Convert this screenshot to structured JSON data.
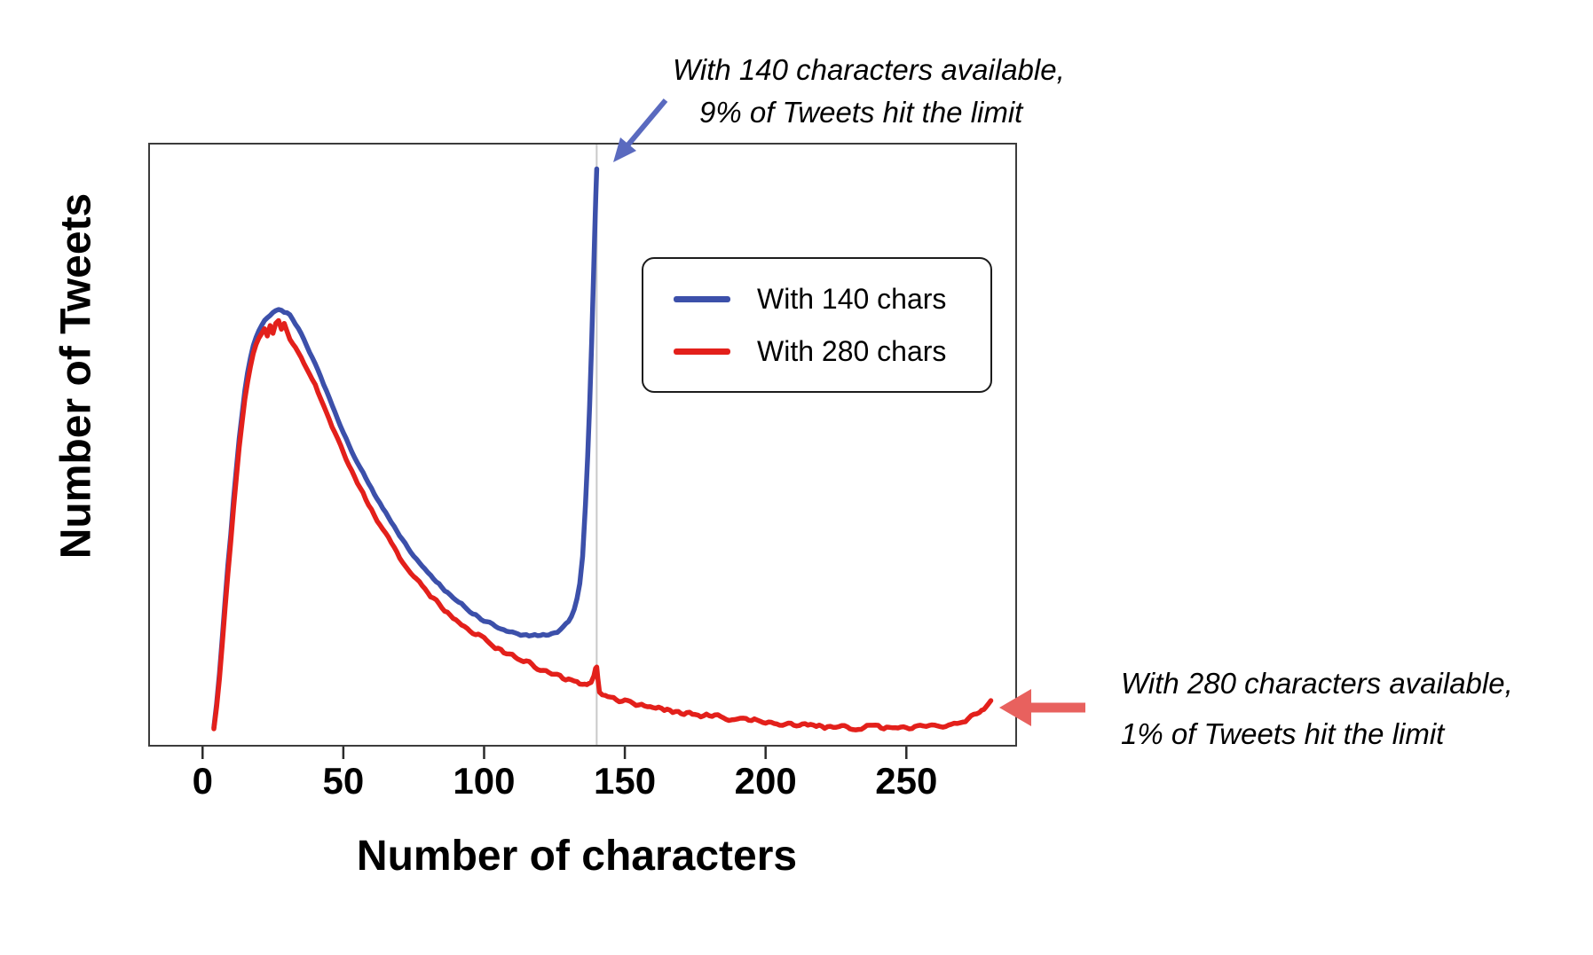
{
  "figure": {
    "background": "#ffffff",
    "frame_color": "#3c3c3c",
    "text_color": "#000000"
  },
  "chart_data": {
    "type": "line",
    "title": "",
    "xlabel": "Number of characters",
    "ylabel": "Number of Tweets",
    "x_ticks": [
      0,
      50,
      100,
      150,
      200,
      250
    ],
    "xlim": [
      -19,
      289
    ],
    "ylim": [
      0,
      1
    ],
    "y_units": "relative number of tweets (y axis unlabeled)",
    "grid": false,
    "reference_line": {
      "x": 140,
      "color": "#c9c9c9"
    },
    "legend": {
      "position": "upper-right-inside",
      "entries": [
        {
          "id": "140",
          "label": "With 140 chars",
          "color": "#3c50aa"
        },
        {
          "id": "280",
          "label": "With 280 chars",
          "color": "#e3201b"
        }
      ]
    },
    "series": [
      {
        "id": "140",
        "name": "With 140 chars",
        "color": "#3c50aa",
        "points": [
          [
            4,
            0.03
          ],
          [
            5,
            0.07
          ],
          [
            6,
            0.12
          ],
          [
            7,
            0.18
          ],
          [
            8,
            0.24
          ],
          [
            9,
            0.3
          ],
          [
            10,
            0.35
          ],
          [
            11,
            0.41
          ],
          [
            12,
            0.46
          ],
          [
            13,
            0.51
          ],
          [
            14,
            0.55
          ],
          [
            15,
            0.59
          ],
          [
            16,
            0.62
          ],
          [
            17,
            0.645
          ],
          [
            18,
            0.665
          ],
          [
            19,
            0.678
          ],
          [
            20,
            0.69
          ],
          [
            21,
            0.7
          ],
          [
            22,
            0.708
          ],
          [
            23,
            0.712
          ],
          [
            24,
            0.716
          ],
          [
            25,
            0.72
          ],
          [
            26,
            0.722
          ],
          [
            27,
            0.725
          ],
          [
            28,
            0.724
          ],
          [
            29,
            0.72
          ],
          [
            30,
            0.718
          ],
          [
            31,
            0.714
          ],
          [
            32,
            0.708
          ],
          [
            33,
            0.7
          ],
          [
            34,
            0.693
          ],
          [
            35,
            0.685
          ],
          [
            36,
            0.675
          ],
          [
            37,
            0.665
          ],
          [
            38,
            0.655
          ],
          [
            39,
            0.645
          ],
          [
            40,
            0.634
          ],
          [
            42,
            0.612
          ],
          [
            44,
            0.59
          ],
          [
            46,
            0.565
          ],
          [
            48,
            0.542
          ],
          [
            50,
            0.52
          ],
          [
            52,
            0.5
          ],
          [
            54,
            0.48
          ],
          [
            56,
            0.462
          ],
          [
            58,
            0.444
          ],
          [
            60,
            0.427
          ],
          [
            62,
            0.41
          ],
          [
            64,
            0.395
          ],
          [
            66,
            0.38
          ],
          [
            68,
            0.365
          ],
          [
            70,
            0.35
          ],
          [
            72,
            0.336
          ],
          [
            75,
            0.316
          ],
          [
            78,
            0.298
          ],
          [
            80,
            0.287
          ],
          [
            83,
            0.272
          ],
          [
            86,
            0.258
          ],
          [
            89,
            0.245
          ],
          [
            92,
            0.234
          ],
          [
            95,
            0.223
          ],
          [
            98,
            0.213
          ],
          [
            101,
            0.205
          ],
          [
            104,
            0.198
          ],
          [
            107,
            0.192
          ],
          [
            110,
            0.187
          ],
          [
            113,
            0.184
          ],
          [
            116,
            0.183
          ],
          [
            119,
            0.183
          ],
          [
            122,
            0.184
          ],
          [
            124,
            0.187
          ],
          [
            126,
            0.19
          ],
          [
            128,
            0.196
          ],
          [
            130,
            0.206
          ],
          [
            131,
            0.215
          ],
          [
            132,
            0.227
          ],
          [
            133,
            0.245
          ],
          [
            134,
            0.27
          ],
          [
            135,
            0.315
          ],
          [
            136,
            0.4
          ],
          [
            136.8,
            0.48
          ],
          [
            137.5,
            0.565
          ],
          [
            138.2,
            0.67
          ],
          [
            138.8,
            0.77
          ],
          [
            139.3,
            0.85
          ],
          [
            139.7,
            0.915
          ],
          [
            140,
            0.958
          ]
        ]
      },
      {
        "id": "280",
        "name": "With 280 chars",
        "color": "#e3201b",
        "points": [
          [
            4,
            0.028
          ],
          [
            5,
            0.065
          ],
          [
            6,
            0.112
          ],
          [
            7,
            0.17
          ],
          [
            8,
            0.228
          ],
          [
            9,
            0.285
          ],
          [
            10,
            0.338
          ],
          [
            11,
            0.395
          ],
          [
            12,
            0.445
          ],
          [
            13,
            0.495
          ],
          [
            14,
            0.535
          ],
          [
            15,
            0.575
          ],
          [
            16,
            0.605
          ],
          [
            17,
            0.63
          ],
          [
            18,
            0.65
          ],
          [
            19,
            0.664
          ],
          [
            20,
            0.676
          ],
          [
            21,
            0.684
          ],
          [
            22,
            0.692
          ],
          [
            23,
            0.68
          ],
          [
            24,
            0.698
          ],
          [
            25,
            0.686
          ],
          [
            26,
            0.7
          ],
          [
            27,
            0.705
          ],
          [
            28,
            0.69
          ],
          [
            29,
            0.7
          ],
          [
            30,
            0.687
          ],
          [
            31,
            0.675
          ],
          [
            32,
            0.668
          ],
          [
            33,
            0.662
          ],
          [
            34,
            0.655
          ],
          [
            35,
            0.647
          ],
          [
            36,
            0.637
          ],
          [
            37,
            0.626
          ],
          [
            38,
            0.616
          ],
          [
            39,
            0.607
          ],
          [
            40,
            0.598
          ],
          [
            42,
            0.576
          ],
          [
            44,
            0.554
          ],
          [
            46,
            0.531
          ],
          [
            48,
            0.508
          ],
          [
            50,
            0.487
          ],
          [
            52,
            0.467
          ],
          [
            54,
            0.448
          ],
          [
            56,
            0.428
          ],
          [
            58,
            0.409
          ],
          [
            60,
            0.392
          ],
          [
            62,
            0.375
          ],
          [
            64,
            0.359
          ],
          [
            66,
            0.344
          ],
          [
            68,
            0.329
          ],
          [
            70,
            0.314
          ],
          [
            72,
            0.3
          ],
          [
            75,
            0.282
          ],
          [
            78,
            0.265
          ],
          [
            80,
            0.254
          ],
          [
            83,
            0.239
          ],
          [
            86,
            0.225
          ],
          [
            89,
            0.212
          ],
          [
            92,
            0.201
          ],
          [
            95,
            0.19
          ],
          [
            98,
            0.182
          ],
          [
            101,
            0.173
          ],
          [
            104,
            0.165
          ],
          [
            107,
            0.157
          ],
          [
            110,
            0.15
          ],
          [
            113,
            0.143
          ],
          [
            116,
            0.137
          ],
          [
            119,
            0.13
          ],
          [
            122,
            0.124
          ],
          [
            125,
            0.118
          ],
          [
            128,
            0.112
          ],
          [
            131,
            0.107
          ],
          [
            133,
            0.104
          ],
          [
            135,
            0.101
          ],
          [
            136.5,
            0.1
          ],
          [
            138,
            0.104
          ],
          [
            139,
            0.115
          ],
          [
            139.6,
            0.127
          ],
          [
            140,
            0.13
          ],
          [
            140.4,
            0.112
          ],
          [
            141,
            0.09
          ],
          [
            142,
            0.086
          ],
          [
            144,
            0.082
          ],
          [
            147,
            0.077
          ],
          [
            150,
            0.074
          ],
          [
            154,
            0.07
          ],
          [
            158,
            0.066
          ],
          [
            162,
            0.063
          ],
          [
            166,
            0.059
          ],
          [
            170,
            0.056
          ],
          [
            175,
            0.052
          ],
          [
            180,
            0.049
          ],
          [
            185,
            0.046
          ],
          [
            190,
            0.043
          ],
          [
            195,
            0.041
          ],
          [
            200,
            0.039
          ],
          [
            205,
            0.037
          ],
          [
            210,
            0.0355
          ],
          [
            215,
            0.034
          ],
          [
            220,
            0.033
          ],
          [
            225,
            0.032
          ],
          [
            230,
            0.031
          ],
          [
            235,
            0.0305
          ],
          [
            240,
            0.03
          ],
          [
            245,
            0.0298
          ],
          [
            250,
            0.0298
          ],
          [
            254,
            0.03
          ],
          [
            258,
            0.0308
          ],
          [
            262,
            0.032
          ],
          [
            265,
            0.034
          ],
          [
            268,
            0.037
          ],
          [
            270,
            0.04
          ],
          [
            272,
            0.044
          ],
          [
            274,
            0.049
          ],
          [
            276,
            0.056
          ],
          [
            277.5,
            0.062
          ],
          [
            279,
            0.07
          ],
          [
            280,
            0.075
          ]
        ]
      }
    ],
    "annotations": [
      {
        "id": "limit140",
        "lines": [
          "With 140 characters available,",
          "9% of Tweets hit the limit"
        ],
        "arrow_color": "#5a6abf",
        "points_to_x": 140
      },
      {
        "id": "limit280",
        "lines": [
          "With 280 characters available,",
          "1% of Tweets hit the limit"
        ],
        "arrow_color": "#e8615e",
        "points_to_x": 280
      }
    ]
  }
}
